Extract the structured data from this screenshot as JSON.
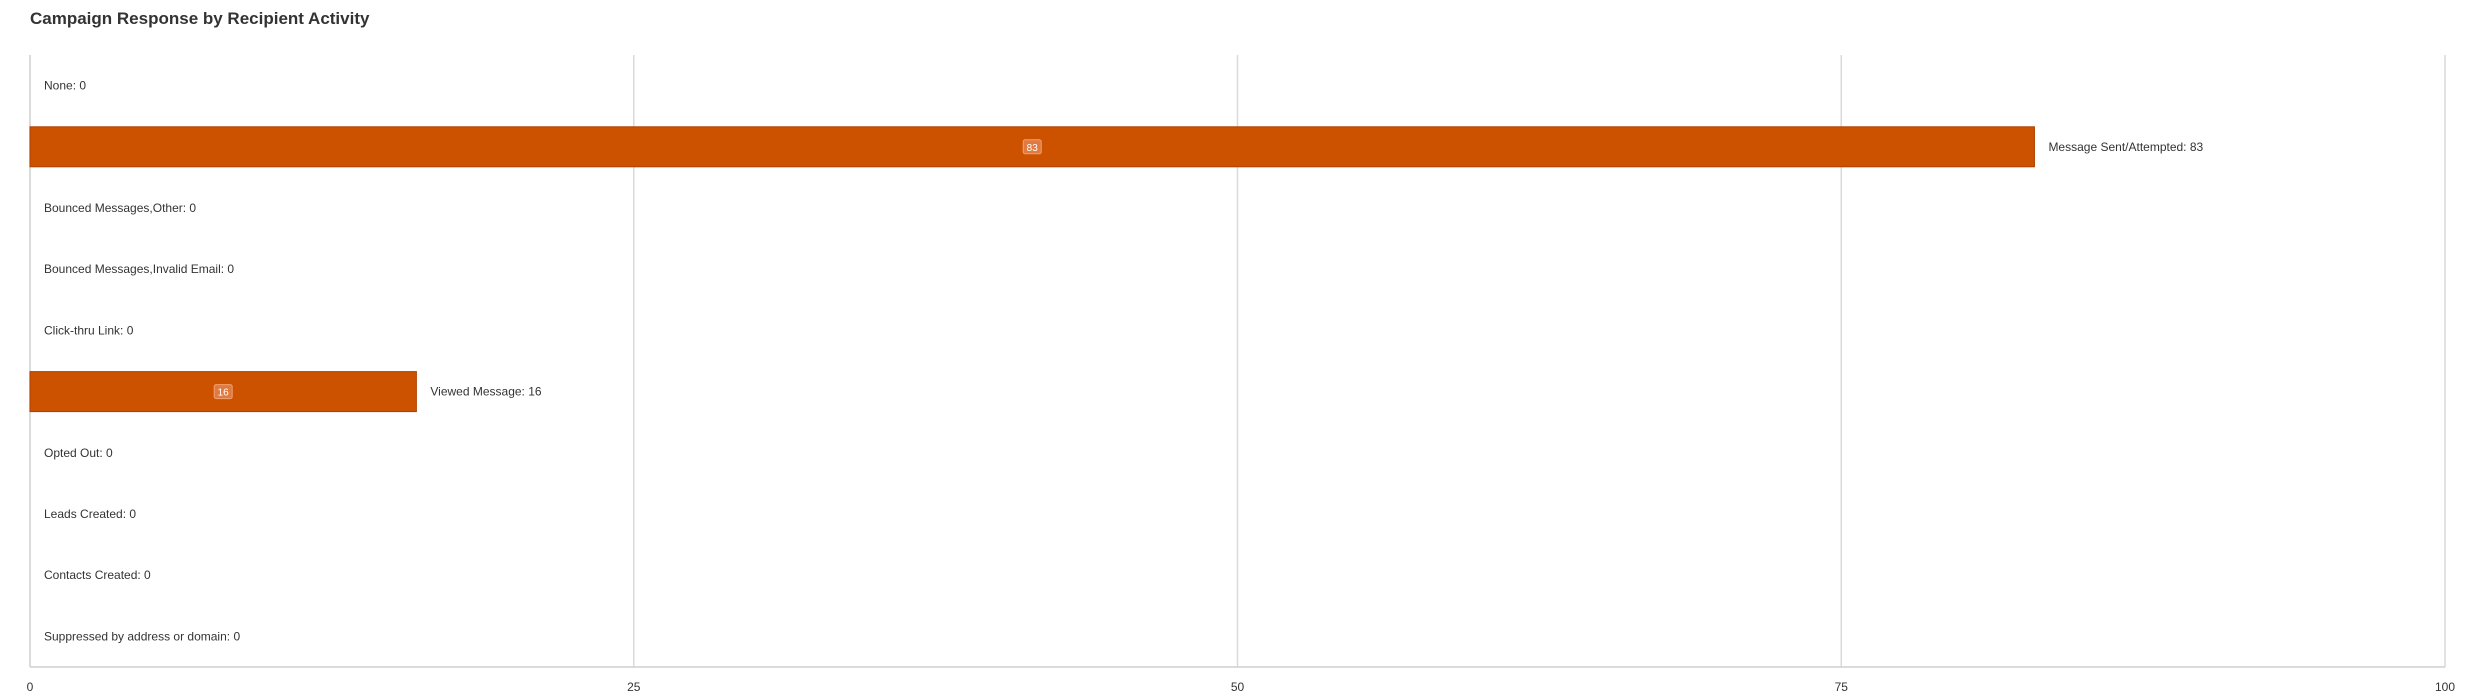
{
  "chart_data": {
    "type": "bar",
    "orientation": "horizontal",
    "title": "Campaign Response by Recipient Activity",
    "xlabel": "",
    "ylabel": "",
    "xlim": [
      0,
      100
    ],
    "x_ticks": [
      0,
      25,
      50,
      75,
      100
    ],
    "grid": true,
    "legend": "none",
    "bar_color": "#cc5200",
    "categories": [
      "None",
      "Message Sent/Attempted",
      "Bounced Messages,Other",
      "Bounced Messages,Invalid Email",
      "Click-thru Link",
      "Viewed Message",
      "Opted Out",
      "Leads Created",
      "Contacts Created",
      "Suppressed by address or domain"
    ],
    "values": [
      0,
      83,
      0,
      0,
      0,
      16,
      0,
      0,
      0,
      0
    ],
    "data_labels": [
      "None: 0",
      "Message Sent/Attempted: 83",
      "Bounced Messages,Other: 0",
      "Bounced Messages,Invalid Email: 0",
      "Click-thru Link: 0",
      "Viewed Message: 16",
      "Opted Out: 0",
      "Leads Created: 0",
      "Contacts Created: 0",
      "Suppressed by address or domain: 0"
    ]
  }
}
